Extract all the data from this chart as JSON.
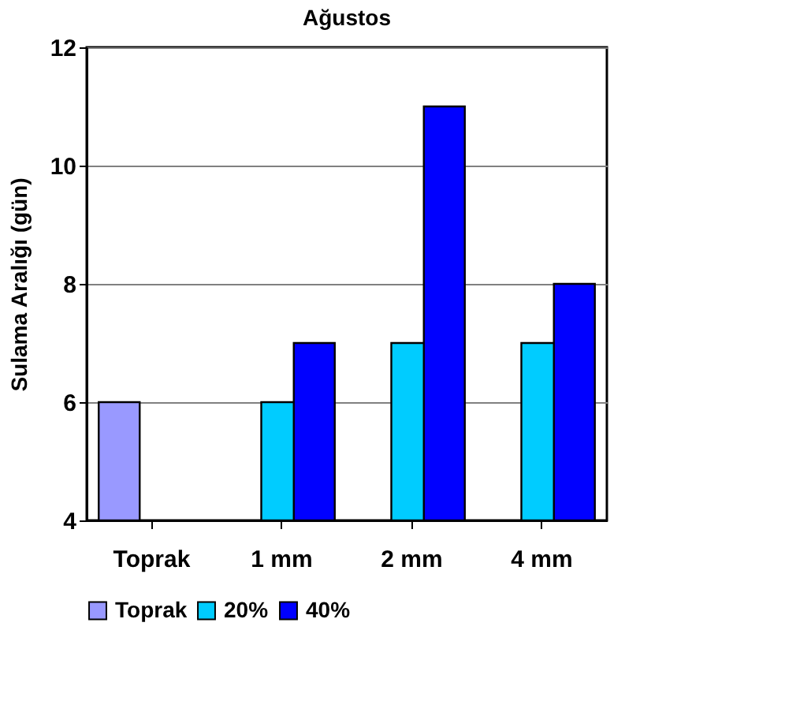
{
  "chart_data": {
    "type": "bar",
    "title": "Ağustos",
    "ylabel": "Sulama Aralığı (gün)",
    "categories": [
      "Toprak",
      "1 mm",
      "2 mm",
      "4 mm"
    ],
    "series": [
      {
        "name": "Toprak",
        "color": "#9999ff",
        "values": [
          6,
          null,
          null,
          null
        ]
      },
      {
        "name": "20%",
        "color": "#00ccff",
        "values": [
          null,
          6,
          7,
          7
        ]
      },
      {
        "name": "40%",
        "color": "#0000ff",
        "values": [
          null,
          7,
          11,
          8
        ]
      }
    ],
    "ylim": [
      4,
      12
    ],
    "yticks": [
      4,
      6,
      8,
      10,
      12
    ],
    "grid": "y",
    "legend": "bottom"
  }
}
